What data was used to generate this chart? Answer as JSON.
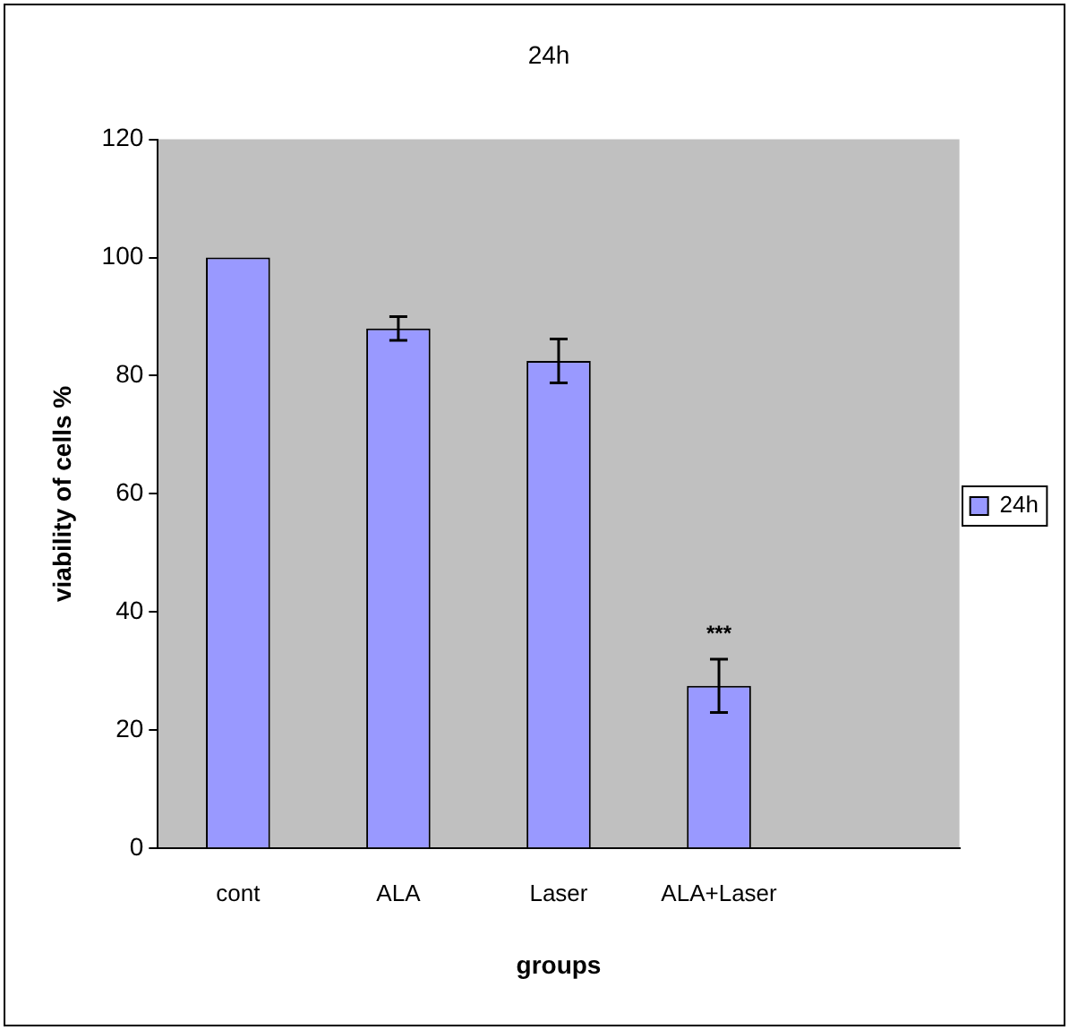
{
  "chart_data": {
    "type": "bar",
    "title": "24h",
    "xlabel": "groups",
    "ylabel": "viability of cells %",
    "categories": [
      "cont",
      "ALA",
      "Laser",
      "ALA+Laser",
      null
    ],
    "series": [
      {
        "name": "24h",
        "color": "#9999ff",
        "values": [
          100,
          88,
          82.5,
          27.5,
          null
        ],
        "errors": [
          null,
          2,
          3.7,
          4.5,
          null
        ]
      }
    ],
    "ylim": [
      0,
      120
    ],
    "yticks": [
      0,
      20,
      40,
      60,
      80,
      100,
      120
    ],
    "grid": false,
    "legend": "right",
    "annotations": [
      "***"
    ]
  }
}
